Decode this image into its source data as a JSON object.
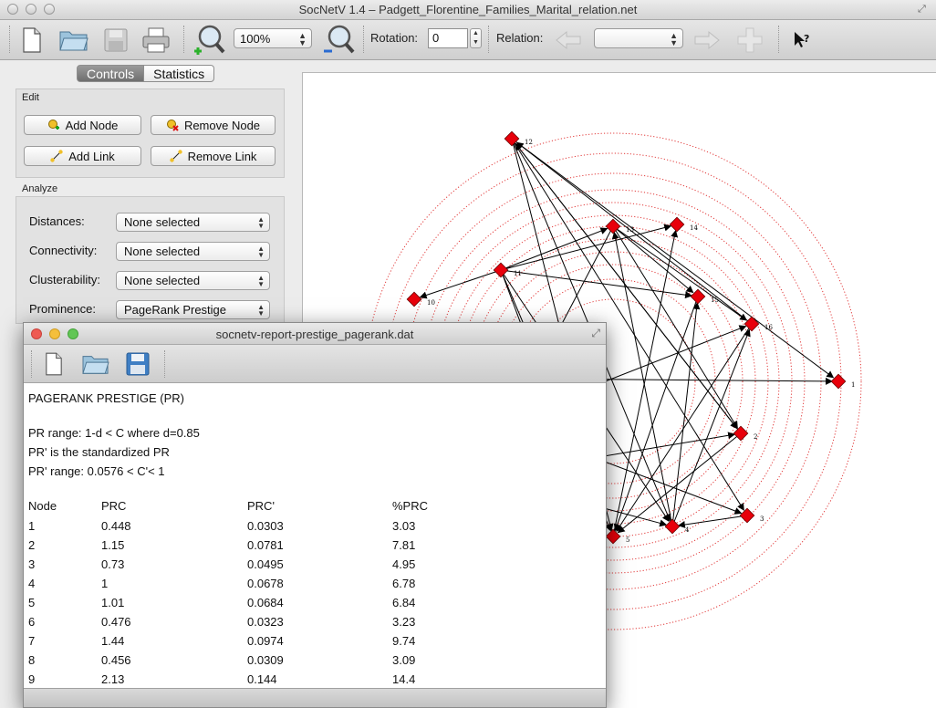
{
  "window": {
    "title": "SocNetV 1.4 – Padgett_Florentine_Families_Marital_relation.net"
  },
  "toolbar": {
    "zoom_value": "100%",
    "rotation_label": "Rotation:",
    "rotation_value": "0",
    "relation_label": "Relation:",
    "relation_value": ""
  },
  "tabs": [
    {
      "label": "Controls"
    },
    {
      "label": "Statistics"
    }
  ],
  "edit": {
    "title": "Edit",
    "add_node": "Add Node",
    "remove_node": "Remove Node",
    "add_link": "Add Link",
    "remove_link": "Remove Link"
  },
  "analyze": {
    "title": "Analyze",
    "rows": [
      {
        "label": "Distances:",
        "value": "None selected"
      },
      {
        "label": "Connectivity:",
        "value": "None selected"
      },
      {
        "label": "Clusterability:",
        "value": "None selected"
      },
      {
        "label": "Prominence:",
        "value": "PageRank Prestige"
      }
    ]
  },
  "graph": {
    "node_color": "#e8000b",
    "ring_color": "#e23a3a",
    "nodes": [
      {
        "label": "12"
      },
      {
        "label": "13"
      },
      {
        "label": "14"
      },
      {
        "label": "11"
      },
      {
        "label": "10"
      },
      {
        "label": "15"
      },
      {
        "label": "16"
      },
      {
        "label": "1"
      },
      {
        "label": "2"
      },
      {
        "label": "3"
      },
      {
        "label": "4"
      },
      {
        "label": "5"
      }
    ]
  },
  "report": {
    "title": "socnetv-report-prestige_pagerank.dat",
    "heading": "PAGERANK PRESTIGE (PR)",
    "range_line": "PR  range:  1-d < C  where d=0.85",
    "std_line": "PR' is the standardized PR",
    "std_range_line": "PR' range:  0.0576 < C'< 1",
    "columns": [
      "Node",
      "PRC",
      "PRC'",
      "%PRC"
    ],
    "rows": [
      [
        "1",
        "0.448",
        "0.0303",
        "3.03"
      ],
      [
        "2",
        "1.15",
        "0.0781",
        "7.81"
      ],
      [
        "3",
        "0.73",
        "0.0495",
        "4.95"
      ],
      [
        "4",
        "1",
        "0.0678",
        "6.78"
      ],
      [
        "5",
        "1.01",
        "0.0684",
        "6.84"
      ],
      [
        "6",
        "0.476",
        "0.0323",
        "3.23"
      ],
      [
        "7",
        "1.44",
        "0.0974",
        "9.74"
      ],
      [
        "8",
        "0.456",
        "0.0309",
        "3.09"
      ],
      [
        "9",
        "2.13",
        "0.144",
        "14.4"
      ]
    ]
  }
}
